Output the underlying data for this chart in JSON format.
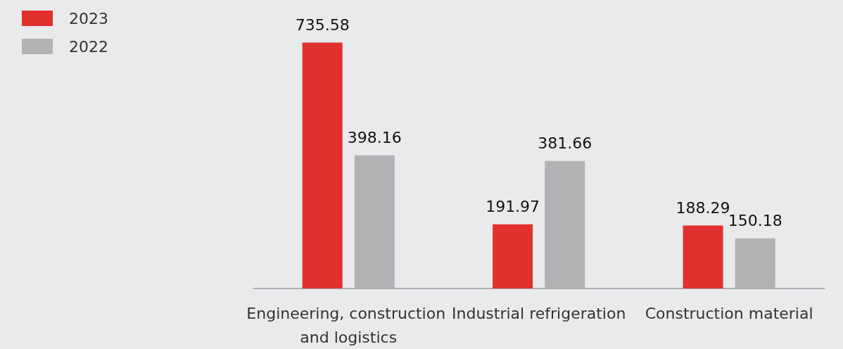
{
  "chart_data": {
    "type": "bar",
    "categories": [
      "Engineering, construction and logistics",
      "Industrial refrigeration",
      "Construction material"
    ],
    "series": [
      {
        "name": "2023",
        "color": "#e0312f",
        "values": [
          735.58,
          191.97,
          188.29
        ]
      },
      {
        "name": "2022",
        "color": "#b3b3b6",
        "values": [
          398.16,
          381.66,
          150.18
        ]
      }
    ],
    "data_labels": true,
    "legend": "top left",
    "grid": false
  }
}
